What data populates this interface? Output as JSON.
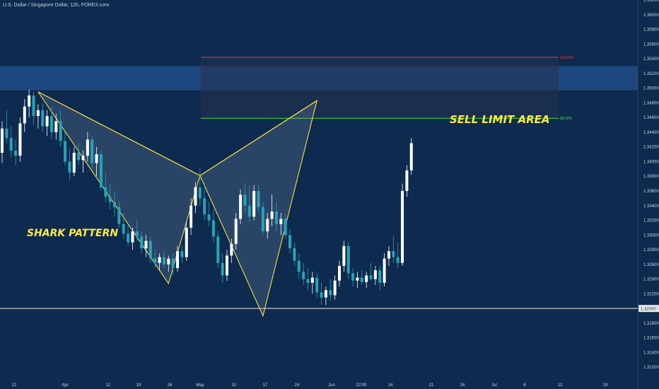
{
  "header": {
    "title": "U.S. Dollar / Singapore Dollar, 12h, FOREX.com"
  },
  "colors": {
    "background": "#0e2a4f",
    "bull": "#ffffff",
    "bear": "#26a3b5",
    "pattern": "#f0e040",
    "stop_line": "#e04040",
    "entry_line": "#40e040",
    "zone": "#2a5ea8",
    "support": "#c8c8c8"
  },
  "chart_data": {
    "type": "candlestick",
    "title": "U.S. Dollar / Singapore Dollar, 12h, FOREX.com",
    "ylim": [
      1.31,
      1.362
    ],
    "y_ticks": [
      "1.36200",
      "1.36000",
      "1.35800",
      "1.35600",
      "1.35400",
      "1.35200",
      "1.35000",
      "1.34800",
      "1.34600",
      "1.34400",
      "1.34200",
      "1.34000",
      "1.33800",
      "1.33600",
      "1.33400",
      "1.33200",
      "1.33000",
      "1.32800",
      "1.32600",
      "1.32400",
      "1.32200",
      "1.32000",
      "1.31800",
      "1.31600",
      "1.31400",
      "1.31200"
    ],
    "x_ticks": [
      "22",
      "Apr",
      "12",
      "19",
      "26",
      "May",
      "10",
      "17",
      "24",
      "Jun",
      "22:00",
      "14",
      "21",
      "26",
      "Jul",
      "6",
      "12",
      "19"
    ],
    "candles": [
      {
        "o": 1.3412,
        "h": 1.3455,
        "l": 1.3398,
        "c": 1.3445
      },
      {
        "o": 1.3445,
        "h": 1.347,
        "l": 1.3425,
        "c": 1.3432
      },
      {
        "o": 1.3432,
        "h": 1.3448,
        "l": 1.3405,
        "c": 1.3415
      },
      {
        "o": 1.3415,
        "h": 1.343,
        "l": 1.3395,
        "c": 1.3408
      },
      {
        "o": 1.3408,
        "h": 1.346,
        "l": 1.34,
        "c": 1.3452
      },
      {
        "o": 1.3452,
        "h": 1.3485,
        "l": 1.344,
        "c": 1.3475
      },
      {
        "o": 1.3475,
        "h": 1.3498,
        "l": 1.346,
        "c": 1.349
      },
      {
        "o": 1.349,
        "h": 1.3495,
        "l": 1.345,
        "c": 1.3462
      },
      {
        "o": 1.3462,
        "h": 1.3478,
        "l": 1.3445,
        "c": 1.347
      },
      {
        "o": 1.347,
        "h": 1.348,
        "l": 1.344,
        "c": 1.3448
      },
      {
        "o": 1.3448,
        "h": 1.347,
        "l": 1.3435,
        "c": 1.3462
      },
      {
        "o": 1.3462,
        "h": 1.3475,
        "l": 1.343,
        "c": 1.344
      },
      {
        "o": 1.344,
        "h": 1.3465,
        "l": 1.343,
        "c": 1.3455
      },
      {
        "o": 1.3455,
        "h": 1.347,
        "l": 1.342,
        "c": 1.3428
      },
      {
        "o": 1.3428,
        "h": 1.344,
        "l": 1.3395,
        "c": 1.34
      },
      {
        "o": 1.34,
        "h": 1.3418,
        "l": 1.3375,
        "c": 1.3385
      },
      {
        "o": 1.3385,
        "h": 1.342,
        "l": 1.338,
        "c": 1.3412
      },
      {
        "o": 1.3412,
        "h": 1.3425,
        "l": 1.3395,
        "c": 1.3402
      },
      {
        "o": 1.3402,
        "h": 1.3415,
        "l": 1.3385,
        "c": 1.3408
      },
      {
        "o": 1.3408,
        "h": 1.344,
        "l": 1.34,
        "c": 1.343
      },
      {
        "o": 1.343,
        "h": 1.3435,
        "l": 1.339,
        "c": 1.3398
      },
      {
        "o": 1.3398,
        "h": 1.342,
        "l": 1.338,
        "c": 1.341
      },
      {
        "o": 1.341,
        "h": 1.3415,
        "l": 1.336,
        "c": 1.3365
      },
      {
        "o": 1.3365,
        "h": 1.3385,
        "l": 1.3345,
        "c": 1.3352
      },
      {
        "o": 1.3352,
        "h": 1.337,
        "l": 1.3335,
        "c": 1.3345
      },
      {
        "o": 1.3345,
        "h": 1.336,
        "l": 1.3325,
        "c": 1.3338
      },
      {
        "o": 1.3338,
        "h": 1.3345,
        "l": 1.331,
        "c": 1.3315
      },
      {
        "o": 1.3315,
        "h": 1.333,
        "l": 1.3295,
        "c": 1.3302
      },
      {
        "o": 1.3302,
        "h": 1.3315,
        "l": 1.3285,
        "c": 1.329
      },
      {
        "o": 1.329,
        "h": 1.331,
        "l": 1.328,
        "c": 1.3305
      },
      {
        "o": 1.3305,
        "h": 1.332,
        "l": 1.3292,
        "c": 1.3298
      },
      {
        "o": 1.3298,
        "h": 1.3305,
        "l": 1.3275,
        "c": 1.3282
      },
      {
        "o": 1.3282,
        "h": 1.33,
        "l": 1.327,
        "c": 1.3292
      },
      {
        "o": 1.3292,
        "h": 1.3298,
        "l": 1.3262,
        "c": 1.3268
      },
      {
        "o": 1.3268,
        "h": 1.328,
        "l": 1.3255,
        "c": 1.3262
      },
      {
        "o": 1.3262,
        "h": 1.3275,
        "l": 1.3252,
        "c": 1.327
      },
      {
        "o": 1.327,
        "h": 1.3278,
        "l": 1.3255,
        "c": 1.326
      },
      {
        "o": 1.326,
        "h": 1.3272,
        "l": 1.325,
        "c": 1.3268
      },
      {
        "o": 1.3268,
        "h": 1.3275,
        "l": 1.3245,
        "c": 1.3255
      },
      {
        "o": 1.3255,
        "h": 1.3285,
        "l": 1.325,
        "c": 1.3278
      },
      {
        "o": 1.3278,
        "h": 1.3285,
        "l": 1.3262,
        "c": 1.327
      },
      {
        "o": 1.327,
        "h": 1.3318,
        "l": 1.3265,
        "c": 1.331
      },
      {
        "o": 1.331,
        "h": 1.335,
        "l": 1.33,
        "c": 1.334
      },
      {
        "o": 1.334,
        "h": 1.3372,
        "l": 1.333,
        "c": 1.3365
      },
      {
        "o": 1.3365,
        "h": 1.3392,
        "l": 1.334,
        "c": 1.335
      },
      {
        "o": 1.335,
        "h": 1.3372,
        "l": 1.332,
        "c": 1.3328
      },
      {
        "o": 1.3328,
        "h": 1.3345,
        "l": 1.3312,
        "c": 1.332
      },
      {
        "o": 1.332,
        "h": 1.3335,
        "l": 1.329,
        "c": 1.3298
      },
      {
        "o": 1.3298,
        "h": 1.3305,
        "l": 1.3255,
        "c": 1.3262
      },
      {
        "o": 1.3262,
        "h": 1.3275,
        "l": 1.3235,
        "c": 1.3245
      },
      {
        "o": 1.3245,
        "h": 1.328,
        "l": 1.3238,
        "c": 1.3272
      },
      {
        "o": 1.3272,
        "h": 1.3295,
        "l": 1.3262,
        "c": 1.3288
      },
      {
        "o": 1.3288,
        "h": 1.333,
        "l": 1.328,
        "c": 1.3322
      },
      {
        "o": 1.3322,
        "h": 1.3362,
        "l": 1.3315,
        "c": 1.3355
      },
      {
        "o": 1.3355,
        "h": 1.337,
        "l": 1.333,
        "c": 1.334
      },
      {
        "o": 1.334,
        "h": 1.3368,
        "l": 1.3318,
        "c": 1.3325
      },
      {
        "o": 1.3325,
        "h": 1.3368,
        "l": 1.332,
        "c": 1.336
      },
      {
        "o": 1.336,
        "h": 1.3368,
        "l": 1.333,
        "c": 1.3338
      },
      {
        "o": 1.3338,
        "h": 1.3345,
        "l": 1.33,
        "c": 1.3305
      },
      {
        "o": 1.3305,
        "h": 1.333,
        "l": 1.3295,
        "c": 1.3322
      },
      {
        "o": 1.3322,
        "h": 1.3355,
        "l": 1.3312,
        "c": 1.3332
      },
      {
        "o": 1.3332,
        "h": 1.3345,
        "l": 1.3305,
        "c": 1.3315
      },
      {
        "o": 1.3315,
        "h": 1.333,
        "l": 1.33,
        "c": 1.3322
      },
      {
        "o": 1.3322,
        "h": 1.3328,
        "l": 1.3295,
        "c": 1.33
      },
      {
        "o": 1.33,
        "h": 1.3308,
        "l": 1.3275,
        "c": 1.3282
      },
      {
        "o": 1.3282,
        "h": 1.329,
        "l": 1.3258,
        "c": 1.3265
      },
      {
        "o": 1.3265,
        "h": 1.3275,
        "l": 1.324,
        "c": 1.325
      },
      {
        "o": 1.325,
        "h": 1.3262,
        "l": 1.3232,
        "c": 1.324
      },
      {
        "o": 1.324,
        "h": 1.3255,
        "l": 1.3225,
        "c": 1.3235
      },
      {
        "o": 1.3235,
        "h": 1.325,
        "l": 1.322,
        "c": 1.3242
      },
      {
        "o": 1.3242,
        "h": 1.3248,
        "l": 1.3215,
        "c": 1.3222
      },
      {
        "o": 1.3222,
        "h": 1.3235,
        "l": 1.3205,
        "c": 1.3215
      },
      {
        "o": 1.3215,
        "h": 1.323,
        "l": 1.3205,
        "c": 1.3225
      },
      {
        "o": 1.3225,
        "h": 1.324,
        "l": 1.321,
        "c": 1.3218
      },
      {
        "o": 1.3218,
        "h": 1.3245,
        "l": 1.3212,
        "c": 1.3238
      },
      {
        "o": 1.3238,
        "h": 1.3265,
        "l": 1.323,
        "c": 1.3258
      },
      {
        "o": 1.3258,
        "h": 1.3292,
        "l": 1.325,
        "c": 1.3285
      },
      {
        "o": 1.3285,
        "h": 1.329,
        "l": 1.324,
        "c": 1.3248
      },
      {
        "o": 1.3248,
        "h": 1.3255,
        "l": 1.323,
        "c": 1.3238
      },
      {
        "o": 1.3238,
        "h": 1.325,
        "l": 1.3228,
        "c": 1.3242
      },
      {
        "o": 1.3242,
        "h": 1.3252,
        "l": 1.3232,
        "c": 1.3236
      },
      {
        "o": 1.3236,
        "h": 1.325,
        "l": 1.3228,
        "c": 1.3245
      },
      {
        "o": 1.3245,
        "h": 1.3262,
        "l": 1.3238,
        "c": 1.324
      },
      {
        "o": 1.324,
        "h": 1.3258,
        "l": 1.3232,
        "c": 1.3252
      },
      {
        "o": 1.3252,
        "h": 1.3258,
        "l": 1.3225,
        "c": 1.3235
      },
      {
        "o": 1.3235,
        "h": 1.3275,
        "l": 1.323,
        "c": 1.3268
      },
      {
        "o": 1.3268,
        "h": 1.3285,
        "l": 1.3258,
        "c": 1.3278
      },
      {
        "o": 1.3278,
        "h": 1.3298,
        "l": 1.3262,
        "c": 1.327
      },
      {
        "o": 1.327,
        "h": 1.329,
        "l": 1.3255,
        "c": 1.3262
      },
      {
        "o": 1.3262,
        "h": 1.337,
        "l": 1.3258,
        "c": 1.336
      },
      {
        "o": 1.336,
        "h": 1.3395,
        "l": 1.3352,
        "c": 1.3388
      },
      {
        "o": 1.3388,
        "h": 1.3432,
        "l": 1.3382,
        "c": 1.3425
      }
    ],
    "horizontal_levels": [
      {
        "label": "115.00%",
        "value": 1.3542
      },
      {
        "label": "88.60%",
        "value": 1.3459
      },
      {
        "label": "1.32000",
        "value": 1.32
      }
    ],
    "zones": [
      {
        "label": "supply-zone",
        "from": 1.3497,
        "to": 1.353
      },
      {
        "label": "sell-limit-box",
        "from": 1.3459,
        "to": 1.3542
      }
    ],
    "pattern_points": [
      {
        "i": 8,
        "y": 1.3495
      },
      {
        "i": 37,
        "y": 1.3234
      },
      {
        "i": 44,
        "y": 1.3381
      },
      {
        "i": 58,
        "y": 1.319
      },
      {
        "i": 70,
        "y": 1.3483
      }
    ],
    "annotations": {
      "sell_limit": "SELL LIMIT AREA",
      "pattern_name": "SHARK PATTERN",
      "support_label": "1.32000"
    }
  }
}
